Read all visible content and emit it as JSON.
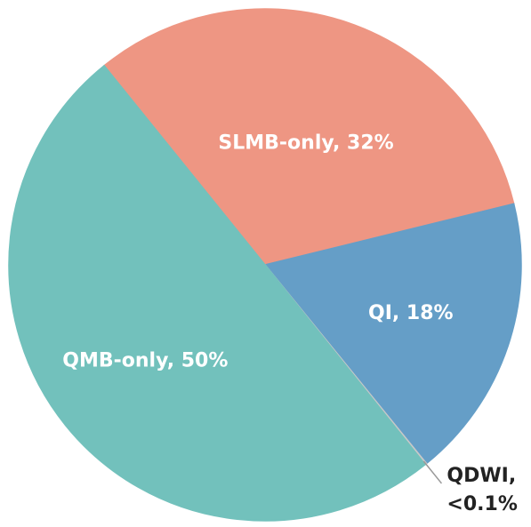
{
  "chart_data": {
    "type": "pie",
    "labels": [
      [
        "SLMB-only, 32%"
      ],
      [
        "QI, 18%"
      ],
      [
        "QDWI,",
        "<0.1%"
      ],
      [
        "QMB-only, 50%"
      ]
    ],
    "values": [
      32,
      18,
      0.1,
      50
    ],
    "colors": [
      "#ee9683",
      "#659ec7",
      "#c8c8c8",
      "#72c1bc"
    ]
  }
}
